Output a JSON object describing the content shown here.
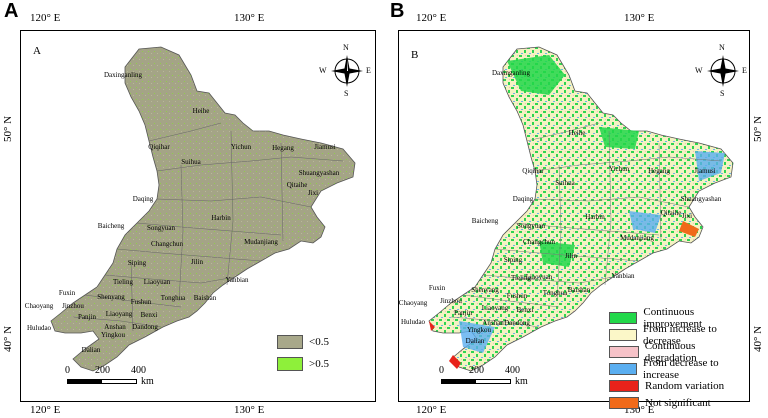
{
  "panel_a": {
    "letter": "A",
    "inner_letter": "A",
    "top_ticks": [
      "120° E",
      "130° E"
    ],
    "bottom_ticks": [
      "120° E",
      "130° E"
    ],
    "left_ticks": [
      "50° N",
      "40° N"
    ],
    "compass": {
      "n": "N",
      "s": "S",
      "e": "E",
      "w": "W"
    },
    "scale": {
      "labels": [
        "0",
        "200",
        "400"
      ],
      "unit": "km"
    },
    "legend": [
      {
        "label": "<0.5",
        "color": "#a8a88a"
      },
      {
        "label": ">0.5",
        "color": "#8ef03a"
      }
    ],
    "cities": [
      "Daxinganling",
      "Heihe",
      "Qiqihar",
      "Suihua",
      "Yichun",
      "Hegang",
      "Jiamusi",
      "Shuangyashan",
      "Qitaihe",
      "Jixi",
      "Daqing",
      "Harbin",
      "Baicheng",
      "Songyuan",
      "Mudanjiang",
      "Changchun",
      "Siping",
      "Jilin",
      "Liaoyuan",
      "Tieling",
      "Yanbian",
      "Fuxin",
      "Shenyang",
      "Baishan",
      "Tonghua",
      "Fushun",
      "Chaoyang",
      "Jinzhou",
      "Panjin",
      "Liaoyang",
      "Benxi",
      "Huludao",
      "Anshan",
      "Dandong",
      "Yingkou",
      "Dalian"
    ]
  },
  "panel_b": {
    "letter": "B",
    "inner_letter": "B",
    "top_ticks": [
      "120° E",
      "130° E"
    ],
    "bottom_ticks": [
      "120° E",
      "130° E"
    ],
    "right_ticks": [
      "50° N",
      "40° N"
    ],
    "compass": {
      "n": "N",
      "s": "S",
      "e": "E",
      "w": "W"
    },
    "scale": {
      "labels": [
        "0",
        "200",
        "400"
      ],
      "unit": "km"
    },
    "legend": [
      {
        "label": "Continuous improvement",
        "color": "#22d84a"
      },
      {
        "label": "From increase to decrease",
        "color": "#fbf7c8"
      },
      {
        "label": "Continuous degradation",
        "color": "#f6c2c8"
      },
      {
        "label": "From decrease to increase",
        "color": "#5aaef0"
      },
      {
        "label": "Random variation",
        "color": "#e8221a"
      },
      {
        "label": "Not significant",
        "color": "#f06a1a"
      }
    ],
    "cities": [
      "Daxinganling",
      "Heihe",
      "Qiqihar",
      "Suihua",
      "Yichun",
      "Hegang",
      "Jiamusi",
      "Shuangyashan",
      "Qitaihe",
      "Jixi",
      "Daqing",
      "Harbin",
      "Baicheng",
      "Songyuan",
      "Mudanjiang",
      "Changchun",
      "Siping",
      "Jilin",
      "Liaoyuan",
      "Tieling",
      "Yanbian",
      "Fuxin",
      "Shenyang",
      "Baishan",
      "Tonghua",
      "Fushun",
      "Chaoyang",
      "Jinzhou",
      "Panjin",
      "Liaoyang",
      "Benxi",
      "Huludao",
      "Anshan",
      "Dandong",
      "Yingkou",
      "Dalian"
    ]
  }
}
